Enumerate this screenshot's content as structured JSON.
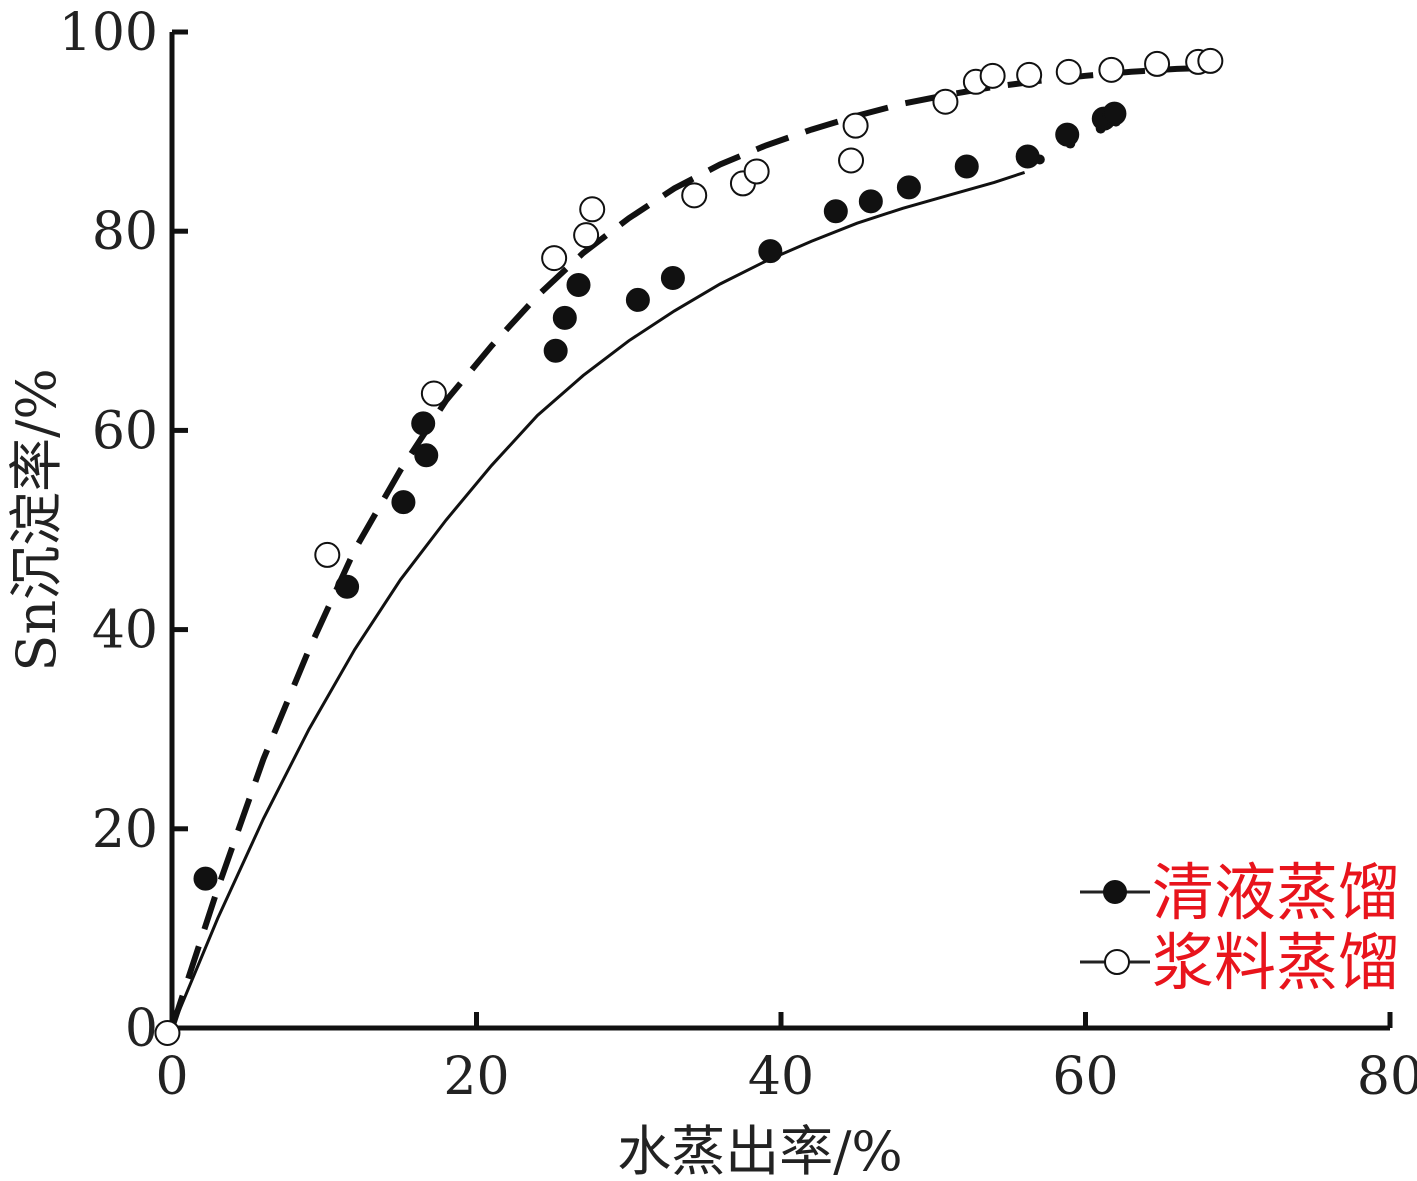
{
  "chart_data": {
    "type": "scatter",
    "xlabel": "水蒸出率/%",
    "ylabel": "Sn沉淀率/%",
    "xlim": [
      0,
      80
    ],
    "ylim": [
      0,
      100
    ],
    "xticks": [
      0,
      20,
      40,
      60,
      80
    ],
    "yticks": [
      0,
      20,
      40,
      60,
      80,
      100
    ],
    "xtick_labels": [
      "0",
      "20",
      "40",
      "60",
      "80"
    ],
    "ytick_labels": [
      "0",
      "20",
      "40",
      "60",
      "80",
      "100"
    ],
    "grid": false,
    "legend_position": "bottom-right",
    "legend_color": "#e8141c",
    "series": [
      {
        "name": "清液蒸馏",
        "marker": "filled-circle",
        "line_style": "solid",
        "points": [
          [
            2.2,
            15
          ],
          [
            11.5,
            44.3
          ],
          [
            15.2,
            52.8
          ],
          [
            16.5,
            60.7
          ],
          [
            16.7,
            57.5
          ],
          [
            25.2,
            68
          ],
          [
            25.8,
            71.3
          ],
          [
            26.7,
            74.6
          ],
          [
            30.6,
            73.1
          ],
          [
            32.9,
            75.3
          ],
          [
            39.3,
            78
          ],
          [
            43.6,
            82
          ],
          [
            45.9,
            83
          ],
          [
            48.4,
            84.4
          ],
          [
            52.2,
            86.5
          ],
          [
            56.2,
            87.5
          ],
          [
            58.8,
            89.7
          ],
          [
            61.2,
            91.3
          ],
          [
            61.9,
            91.8
          ]
        ],
        "fit_curve": [
          [
            0,
            0
          ],
          [
            3,
            11
          ],
          [
            6,
            21
          ],
          [
            9,
            30
          ],
          [
            12,
            38
          ],
          [
            15,
            45
          ],
          [
            18,
            51
          ],
          [
            21,
            56.5
          ],
          [
            24,
            61.5
          ],
          [
            27,
            65.5
          ],
          [
            30,
            69
          ],
          [
            33,
            72
          ],
          [
            36,
            74.7
          ],
          [
            39,
            77
          ],
          [
            42,
            79
          ],
          [
            45,
            80.8
          ],
          [
            48,
            82.3
          ],
          [
            51,
            83.6
          ],
          [
            54,
            84.9
          ],
          [
            56,
            85.9
          ]
        ],
        "fit_dots": [
          [
            57,
            87.2
          ],
          [
            59,
            88.8
          ],
          [
            61,
            90.3
          ],
          [
            62,
            91
          ]
        ]
      },
      {
        "name": "浆料蒸馏",
        "marker": "open-circle",
        "line_style": "dashed",
        "points": [
          [
            -0.3,
            -0.5
          ],
          [
            10.2,
            47.5
          ],
          [
            17.2,
            63.7
          ],
          [
            25.1,
            77.3
          ],
          [
            27.2,
            79.6
          ],
          [
            27.6,
            82.2
          ],
          [
            34.3,
            83.6
          ],
          [
            37.5,
            84.8
          ],
          [
            38.4,
            86
          ],
          [
            44.6,
            87.1
          ],
          [
            44.9,
            90.6
          ],
          [
            50.8,
            93
          ],
          [
            52.8,
            95
          ],
          [
            53.9,
            95.6
          ],
          [
            56.3,
            95.7
          ],
          [
            58.9,
            96
          ],
          [
            61.7,
            96.2
          ],
          [
            64.7,
            96.8
          ],
          [
            67.4,
            97
          ],
          [
            68.2,
            97.1
          ]
        ],
        "fit_curve": [
          [
            0,
            0
          ],
          [
            3,
            14
          ],
          [
            6,
            27
          ],
          [
            9,
            38
          ],
          [
            12,
            48
          ],
          [
            15,
            56
          ],
          [
            18,
            63
          ],
          [
            21,
            68.5
          ],
          [
            24,
            73.5
          ],
          [
            27,
            77.8
          ],
          [
            30,
            81.3
          ],
          [
            33,
            84.3
          ],
          [
            36,
            86.7
          ],
          [
            39,
            88.6
          ],
          [
            42,
            90.2
          ],
          [
            45,
            91.6
          ],
          [
            48,
            92.8
          ],
          [
            51,
            93.7
          ],
          [
            54,
            94.5
          ],
          [
            57,
            95.1
          ],
          [
            60,
            95.6
          ],
          [
            63,
            96
          ],
          [
            66,
            96.3
          ],
          [
            68,
            96.4
          ]
        ]
      }
    ]
  }
}
